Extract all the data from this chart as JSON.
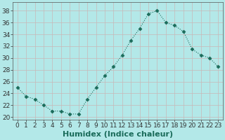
{
  "x": [
    0,
    1,
    2,
    3,
    4,
    5,
    6,
    7,
    8,
    9,
    10,
    11,
    12,
    13,
    14,
    15,
    16,
    17,
    18,
    19,
    20,
    21,
    22,
    23
  ],
  "y": [
    25,
    23.5,
    23,
    22,
    21,
    21,
    20.5,
    20.5,
    23,
    25,
    27,
    28.5,
    30.5,
    33,
    35,
    37.5,
    38,
    36,
    35.5,
    34.5,
    31.5,
    30.5,
    30,
    28.5
  ],
  "line_color": "#1a6b5a",
  "marker": "D",
  "marker_size": 2.5,
  "bg_color": "#b3e8e8",
  "grid_color": "#c8b8b8",
  "xlabel": "Humidex (Indice chaleur)",
  "xlabel_fontsize": 8,
  "ylabel_ticks": [
    20,
    22,
    24,
    26,
    28,
    30,
    32,
    34,
    36,
    38
  ],
  "xticks": [
    0,
    1,
    2,
    3,
    4,
    5,
    6,
    7,
    8,
    9,
    10,
    11,
    12,
    13,
    14,
    15,
    16,
    17,
    18,
    19,
    20,
    21,
    22,
    23
  ],
  "ylim": [
    19.5,
    39.5
  ],
  "xlim": [
    -0.5,
    23.5
  ],
  "tick_fontsize": 6.5
}
